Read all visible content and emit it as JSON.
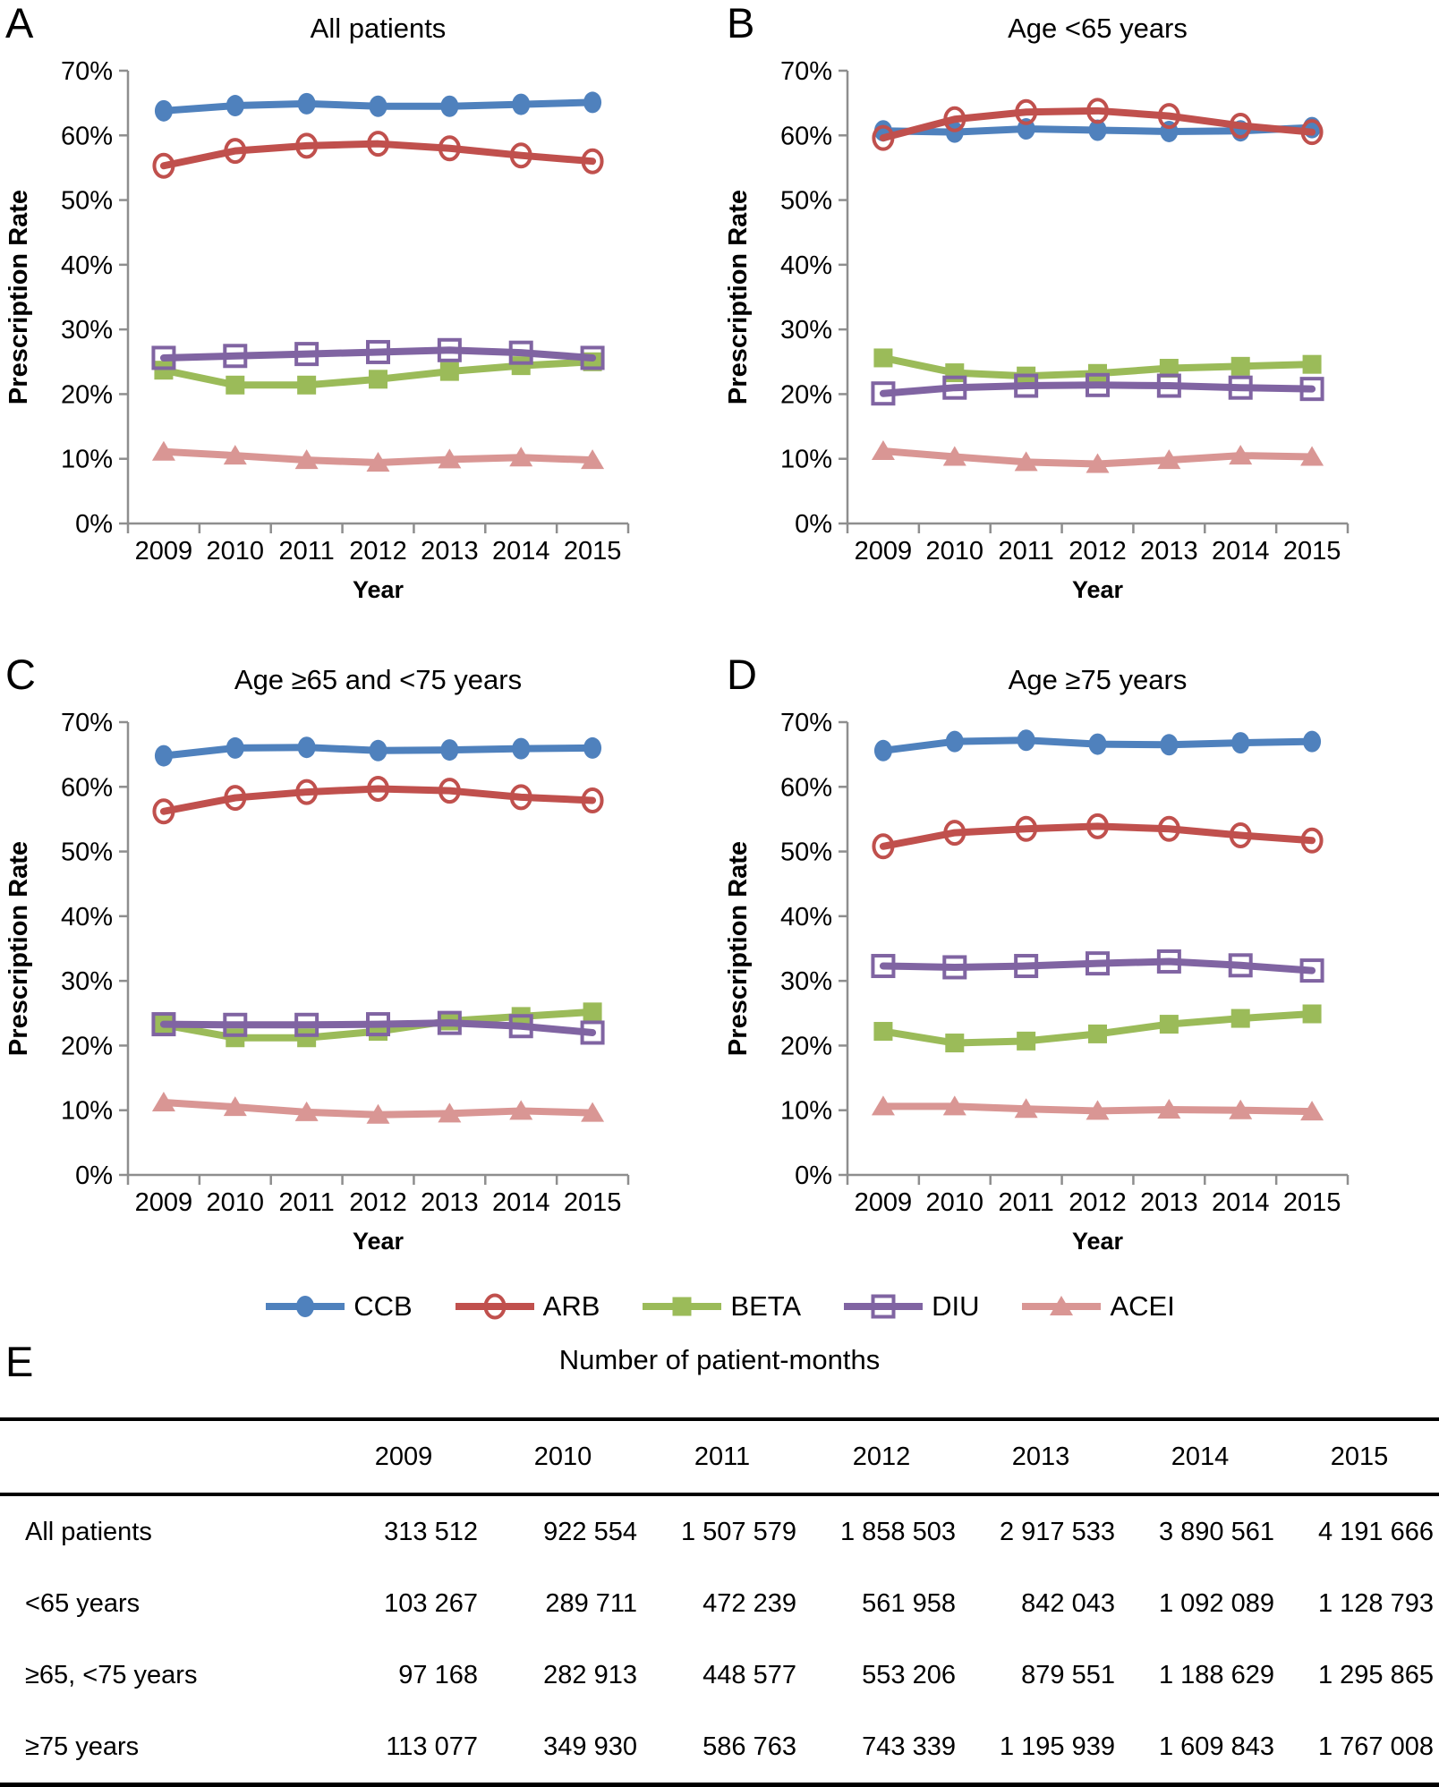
{
  "colors": {
    "axis": "#8E8E8E",
    "text": "#000000",
    "ccb_blue": "#4F81BD",
    "arb_red": "#C0504D",
    "beta_green": "#9BBB59",
    "diu_purple": "#8064A2",
    "acei_pink": "#D99694"
  },
  "legend": {
    "items": [
      {
        "label": "CCB",
        "marker": "filled-circle",
        "color": "#4F81BD"
      },
      {
        "label": "ARB",
        "marker": "open-circle",
        "color": "#C0504D"
      },
      {
        "label": "BETA",
        "marker": "filled-square",
        "color": "#9BBB59"
      },
      {
        "label": "DIU",
        "marker": "open-square",
        "color": "#8064A2"
      },
      {
        "label": "ACEI",
        "marker": "filled-triangle",
        "color": "#D99694"
      }
    ],
    "position": "bottom-shared"
  },
  "chart_data": [
    {
      "type": "line",
      "panel_letter": "A",
      "title": "All patients",
      "xlabel": "Year",
      "ylabel": "Prescription Rate",
      "ylim": [
        0,
        70
      ],
      "ytick_step": 10,
      "ytick_labels": [
        "0%",
        "10%",
        "20%",
        "30%",
        "40%",
        "50%",
        "60%",
        "70%"
      ],
      "grid": false,
      "x": [
        "2009",
        "2010",
        "2011",
        "2012",
        "2013",
        "2014",
        "2015"
      ],
      "series": [
        {
          "name": "CCB",
          "values": [
            63.8,
            64.6,
            64.9,
            64.5,
            64.5,
            64.8,
            65.1
          ]
        },
        {
          "name": "ARB",
          "values": [
            55.3,
            57.6,
            58.4,
            58.7,
            58.0,
            56.9,
            56.0
          ]
        },
        {
          "name": "BETA",
          "values": [
            23.7,
            21.4,
            21.4,
            22.3,
            23.5,
            24.4,
            25.0
          ]
        },
        {
          "name": "DIU",
          "values": [
            25.6,
            25.9,
            26.2,
            26.5,
            26.8,
            26.4,
            25.6
          ]
        },
        {
          "name": "ACEI",
          "values": [
            11.1,
            10.5,
            9.8,
            9.4,
            9.9,
            10.2,
            9.8
          ]
        }
      ]
    },
    {
      "type": "line",
      "panel_letter": "B",
      "title": "Age <65 years",
      "xlabel": "Year",
      "ylabel": "Prescription Rate",
      "ylim": [
        0,
        70
      ],
      "ytick_step": 10,
      "ytick_labels": [
        "0%",
        "10%",
        "20%",
        "30%",
        "40%",
        "50%",
        "60%",
        "70%"
      ],
      "grid": false,
      "x": [
        "2009",
        "2010",
        "2011",
        "2012",
        "2013",
        "2014",
        "2015"
      ],
      "series": [
        {
          "name": "CCB",
          "values": [
            60.7,
            60.5,
            61.0,
            60.8,
            60.6,
            60.7,
            61.2
          ]
        },
        {
          "name": "ARB",
          "values": [
            59.6,
            62.5,
            63.6,
            63.8,
            63.0,
            61.5,
            60.5
          ]
        },
        {
          "name": "BETA",
          "values": [
            25.6,
            23.3,
            22.8,
            23.2,
            24.0,
            24.3,
            24.6
          ]
        },
        {
          "name": "DIU",
          "values": [
            20.1,
            21.0,
            21.3,
            21.4,
            21.3,
            21.0,
            20.8
          ]
        },
        {
          "name": "ACEI",
          "values": [
            11.2,
            10.3,
            9.5,
            9.2,
            9.8,
            10.5,
            10.3
          ]
        }
      ]
    },
    {
      "type": "line",
      "panel_letter": "C",
      "title": "Age ≥65 and <75 years",
      "xlabel": "Year",
      "ylabel": "Prescription Rate",
      "ylim": [
        0,
        70
      ],
      "ytick_step": 10,
      "ytick_labels": [
        "0%",
        "10%",
        "20%",
        "30%",
        "40%",
        "50%",
        "60%",
        "70%"
      ],
      "grid": false,
      "x": [
        "2009",
        "2010",
        "2011",
        "2012",
        "2013",
        "2014",
        "2015"
      ],
      "series": [
        {
          "name": "CCB",
          "values": [
            64.8,
            66.0,
            66.1,
            65.6,
            65.7,
            65.9,
            66.0
          ]
        },
        {
          "name": "ARB",
          "values": [
            56.2,
            58.3,
            59.2,
            59.7,
            59.4,
            58.4,
            57.9
          ]
        },
        {
          "name": "BETA",
          "values": [
            23.2,
            21.2,
            21.2,
            22.2,
            23.8,
            24.5,
            25.2
          ]
        },
        {
          "name": "DIU",
          "values": [
            23.3,
            23.2,
            23.2,
            23.3,
            23.5,
            23.0,
            22.0
          ]
        },
        {
          "name": "ACEI",
          "values": [
            11.2,
            10.5,
            9.7,
            9.3,
            9.5,
            9.9,
            9.6
          ]
        }
      ]
    },
    {
      "type": "line",
      "panel_letter": "D",
      "title": "Age ≥75 years",
      "xlabel": "Year",
      "ylabel": "Prescription Rate",
      "ylim": [
        0,
        70
      ],
      "ytick_step": 10,
      "ytick_labels": [
        "0%",
        "10%",
        "20%",
        "30%",
        "40%",
        "50%",
        "60%",
        "70%"
      ],
      "grid": false,
      "x": [
        "2009",
        "2010",
        "2011",
        "2012",
        "2013",
        "2014",
        "2015"
      ],
      "series": [
        {
          "name": "CCB",
          "values": [
            65.6,
            67.0,
            67.2,
            66.6,
            66.5,
            66.8,
            67.0
          ]
        },
        {
          "name": "ARB",
          "values": [
            50.8,
            52.9,
            53.5,
            53.9,
            53.5,
            52.5,
            51.7
          ]
        },
        {
          "name": "BETA",
          "values": [
            22.2,
            20.4,
            20.7,
            21.8,
            23.3,
            24.2,
            24.9
          ]
        },
        {
          "name": "DIU",
          "values": [
            32.3,
            32.1,
            32.3,
            32.7,
            33.0,
            32.4,
            31.6
          ]
        },
        {
          "name": "ACEI",
          "values": [
            10.6,
            10.6,
            10.2,
            9.9,
            10.1,
            10.0,
            9.8
          ]
        }
      ]
    }
  ],
  "table": {
    "panel_letter": "E",
    "title": "Number of patient-months",
    "columns": [
      "",
      "2009",
      "2010",
      "2011",
      "2012",
      "2013",
      "2014",
      "2015"
    ],
    "rows": [
      {
        "label": "All patients",
        "values": [
          "313 512",
          "922 554",
          "1 507 579",
          "1 858 503",
          "2 917 533",
          "3 890 561",
          "4 191 666"
        ]
      },
      {
        "label": "<65 years",
        "values": [
          "103 267",
          "289 711",
          "472 239",
          "561 958",
          "842 043",
          "1 092 089",
          "1 128 793"
        ]
      },
      {
        "label": "≥65, <75 years",
        "values": [
          "97 168",
          "282 913",
          "448 577",
          "553 206",
          "879 551",
          "1 188 629",
          "1 295 865"
        ]
      },
      {
        "label": "≥75 years",
        "values": [
          "113 077",
          "349 930",
          "586 763",
          "743 339",
          "1 195 939",
          "1 609 843",
          "1 767 008"
        ]
      }
    ]
  }
}
